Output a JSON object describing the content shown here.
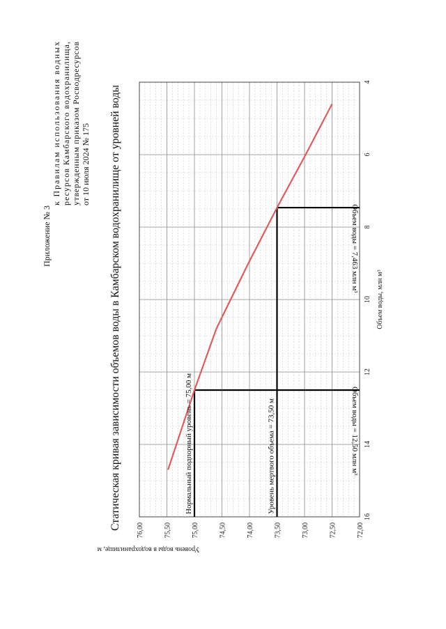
{
  "header": {
    "lines": [
      "Приложение № 3",
      "к Правилам использования водных",
      "ресурсов Камбарского водохранилища,",
      "утвержденным приказом Росводресурсов",
      "от 10 июля 2024 № 175"
    ]
  },
  "chart_data": {
    "type": "line",
    "title": "Статическая кривая зависимости объемов воды в Камбарском водохранилище от уровней воды",
    "xlabel": "Объем воды, млн м³",
    "ylabel": "Уровень воды в водохранилище, м",
    "xlim": [
      4,
      16
    ],
    "ylim": [
      72.0,
      76.0
    ],
    "x_ticks": [
      "4",
      "6",
      "8",
      "10",
      "12",
      "14",
      "16"
    ],
    "y_ticks": [
      "72,00",
      "72,50",
      "73,00",
      "73,50",
      "74,00",
      "74,50",
      "75,00",
      "75,50",
      "76,00"
    ],
    "grid": true,
    "orientation": "rotated-90-ccw",
    "series": [
      {
        "color": "#e05a5e",
        "x": [
          4.6,
          6.0,
          7.463,
          9.0,
          10.8,
          12.5,
          14.7
        ],
        "y": [
          72.5,
          72.98,
          73.5,
          74.02,
          74.6,
          75.0,
          75.48
        ]
      }
    ],
    "reference_lines": [
      {
        "kind": "level",
        "y": 75.0,
        "x_to": 12.5,
        "label": "Нормальный подпорный уровень = 75,00 м"
      },
      {
        "kind": "level",
        "y": 73.5,
        "x_to": 7.463,
        "label": "Уровень мертвого объема = 73,50 м"
      },
      {
        "kind": "volume",
        "x": 12.5,
        "y_from": 75.0,
        "label": "Объем воды = 12,50 млн м³"
      },
      {
        "kind": "volume",
        "x": 7.463,
        "y_from": 73.5,
        "label": "Объем воды = 7,463 млн м³"
      }
    ]
  }
}
